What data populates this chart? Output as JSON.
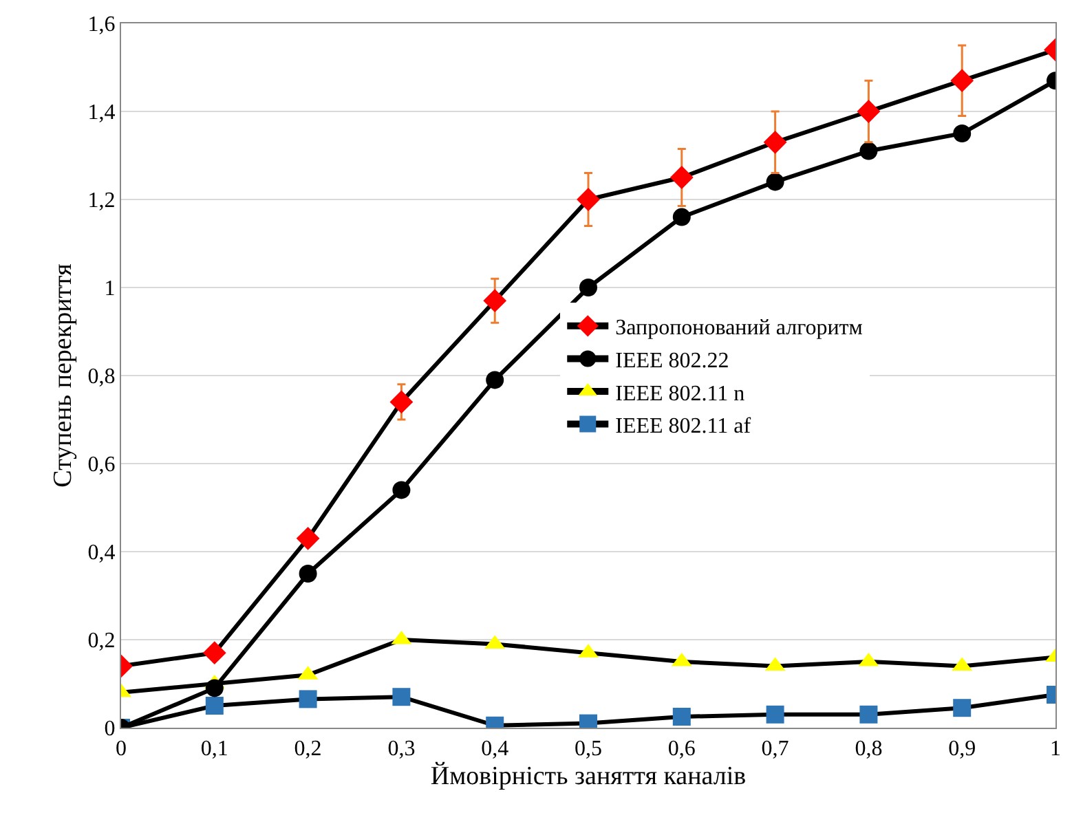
{
  "chart_data": {
    "type": "line",
    "xlabel": "Ймовірність заняття каналів",
    "ylabel": "Ступень перекриття",
    "x": [
      0,
      0.1,
      0.2,
      0.3,
      0.4,
      0.5,
      0.6,
      0.7,
      0.8,
      0.9,
      1
    ],
    "series": [
      {
        "name": "Запропонований алгоритм",
        "color": "#ff0000",
        "marker": "diamond",
        "values": [
          0.14,
          0.17,
          0.43,
          0.74,
          0.97,
          1.2,
          1.25,
          1.33,
          1.4,
          1.47,
          1.54
        ],
        "errors": [
          null,
          null,
          null,
          0.04,
          0.05,
          0.06,
          0.065,
          0.07,
          0.07,
          0.08,
          null
        ]
      },
      {
        "name": "IEEE 802.22",
        "color": "#000000",
        "marker": "circle",
        "values": [
          0,
          0.09,
          0.35,
          0.54,
          0.79,
          1.0,
          1.16,
          1.24,
          1.31,
          1.35,
          1.47
        ]
      },
      {
        "name": "IEEE 802.11 n",
        "color": "#ffff00",
        "marker": "triangle",
        "values": [
          0.08,
          0.1,
          0.12,
          0.2,
          0.19,
          0.17,
          0.15,
          0.14,
          0.15,
          0.14,
          0.16
        ]
      },
      {
        "name": "IEEE 802.11 af",
        "color": "#2e75b6",
        "marker": "square",
        "values": [
          0,
          0.05,
          0.065,
          0.07,
          0.005,
          0.01,
          0.025,
          0.03,
          0.03,
          0.045,
          0.075
        ]
      }
    ],
    "xlim": [
      0,
      1
    ],
    "ylim": [
      0,
      1.6
    ],
    "xticks": [
      0,
      {
        "value": 0.1,
        "label": "0,1"
      },
      {
        "value": 0.2,
        "label": "0,2"
      },
      {
        "value": 0.3,
        "label": "0,3"
      },
      {
        "value": 0.4,
        "label": "0,4"
      },
      {
        "value": 0.5,
        "label": "0,5"
      },
      {
        "value": 0.6,
        "label": "0,6"
      },
      {
        "value": 0.7,
        "label": "0,7"
      },
      {
        "value": 0.8,
        "label": "0,8"
      },
      {
        "value": 0.9,
        "label": "0,9"
      },
      1
    ],
    "yticks": [
      0,
      {
        "value": 0.2,
        "label": "0,2"
      },
      {
        "value": 0.4,
        "label": "0,4"
      },
      {
        "value": 0.6,
        "label": "0,6"
      },
      {
        "value": 0.8,
        "label": "0,8"
      },
      1,
      {
        "value": 1.2,
        "label": "1,2"
      },
      {
        "value": 1.4,
        "label": "1,4"
      },
      {
        "value": 1.6,
        "label": "1,6"
      }
    ],
    "grid": "y",
    "legend": "right",
    "line_style": "solid"
  }
}
